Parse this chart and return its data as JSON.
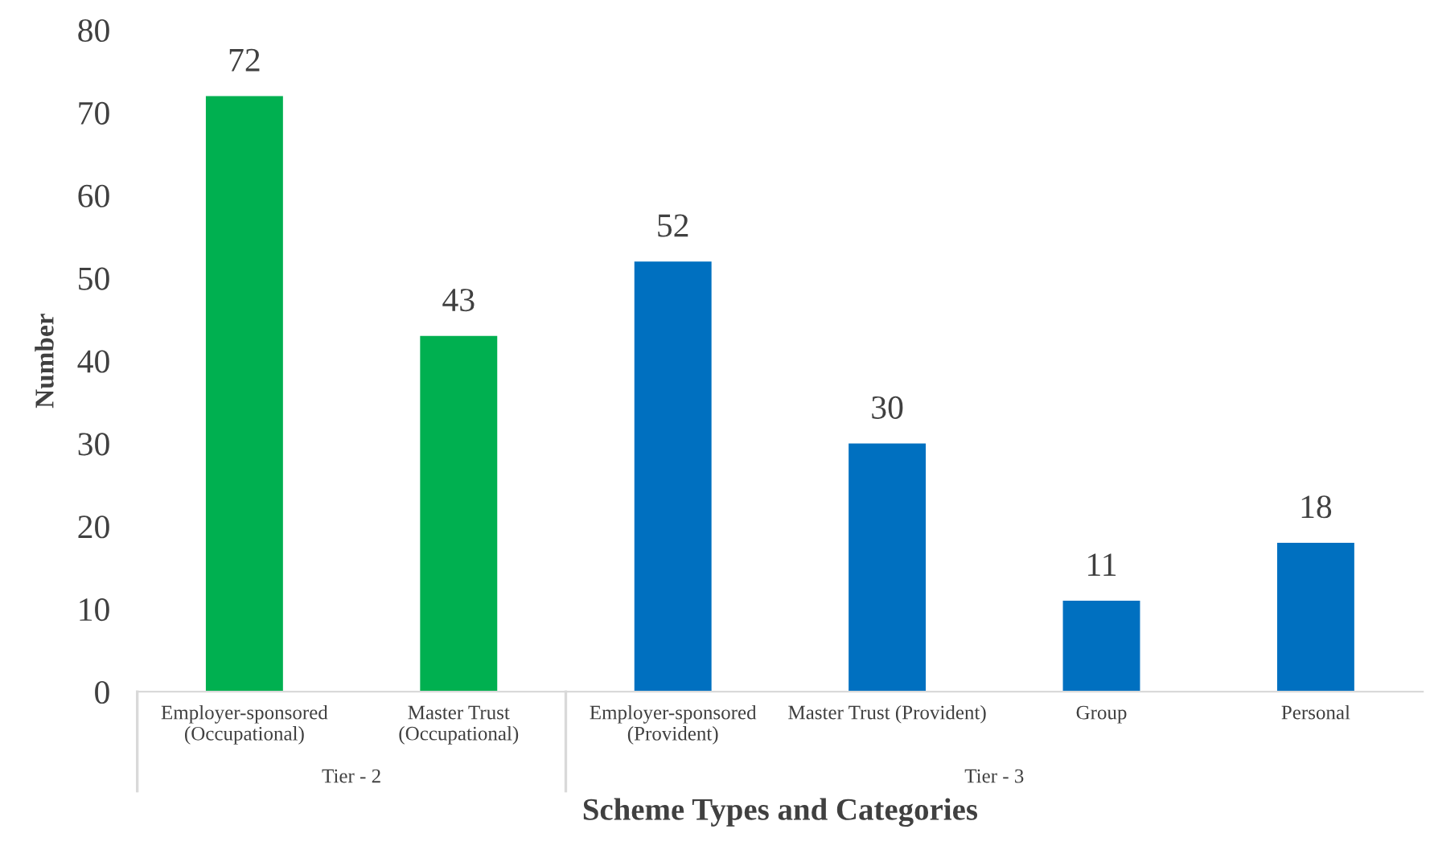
{
  "chart_data": {
    "type": "bar",
    "xlabel": "Scheme Types and Categories",
    "ylabel": "Number",
    "categories": [
      "Employer-sponsored\n(Occupational)",
      "Master Trust\n(Occupational)",
      "Employer-sponsored\n(Provident)",
      "Master Trust (Provident)",
      "Group",
      "Personal"
    ],
    "values": [
      72,
      43,
      52,
      30,
      11,
      18
    ],
    "colors": [
      "#00b050",
      "#00b050",
      "#0070c0",
      "#0070c0",
      "#0070c0",
      "#0070c0"
    ],
    "annotations": [
      "Tier - 2",
      "Tier - 3"
    ],
    "ylim": [
      0,
      80
    ],
    "yticks": [
      0,
      10,
      20,
      30,
      40,
      50,
      60,
      70,
      80
    ],
    "data_labels": true,
    "grid": false
  }
}
